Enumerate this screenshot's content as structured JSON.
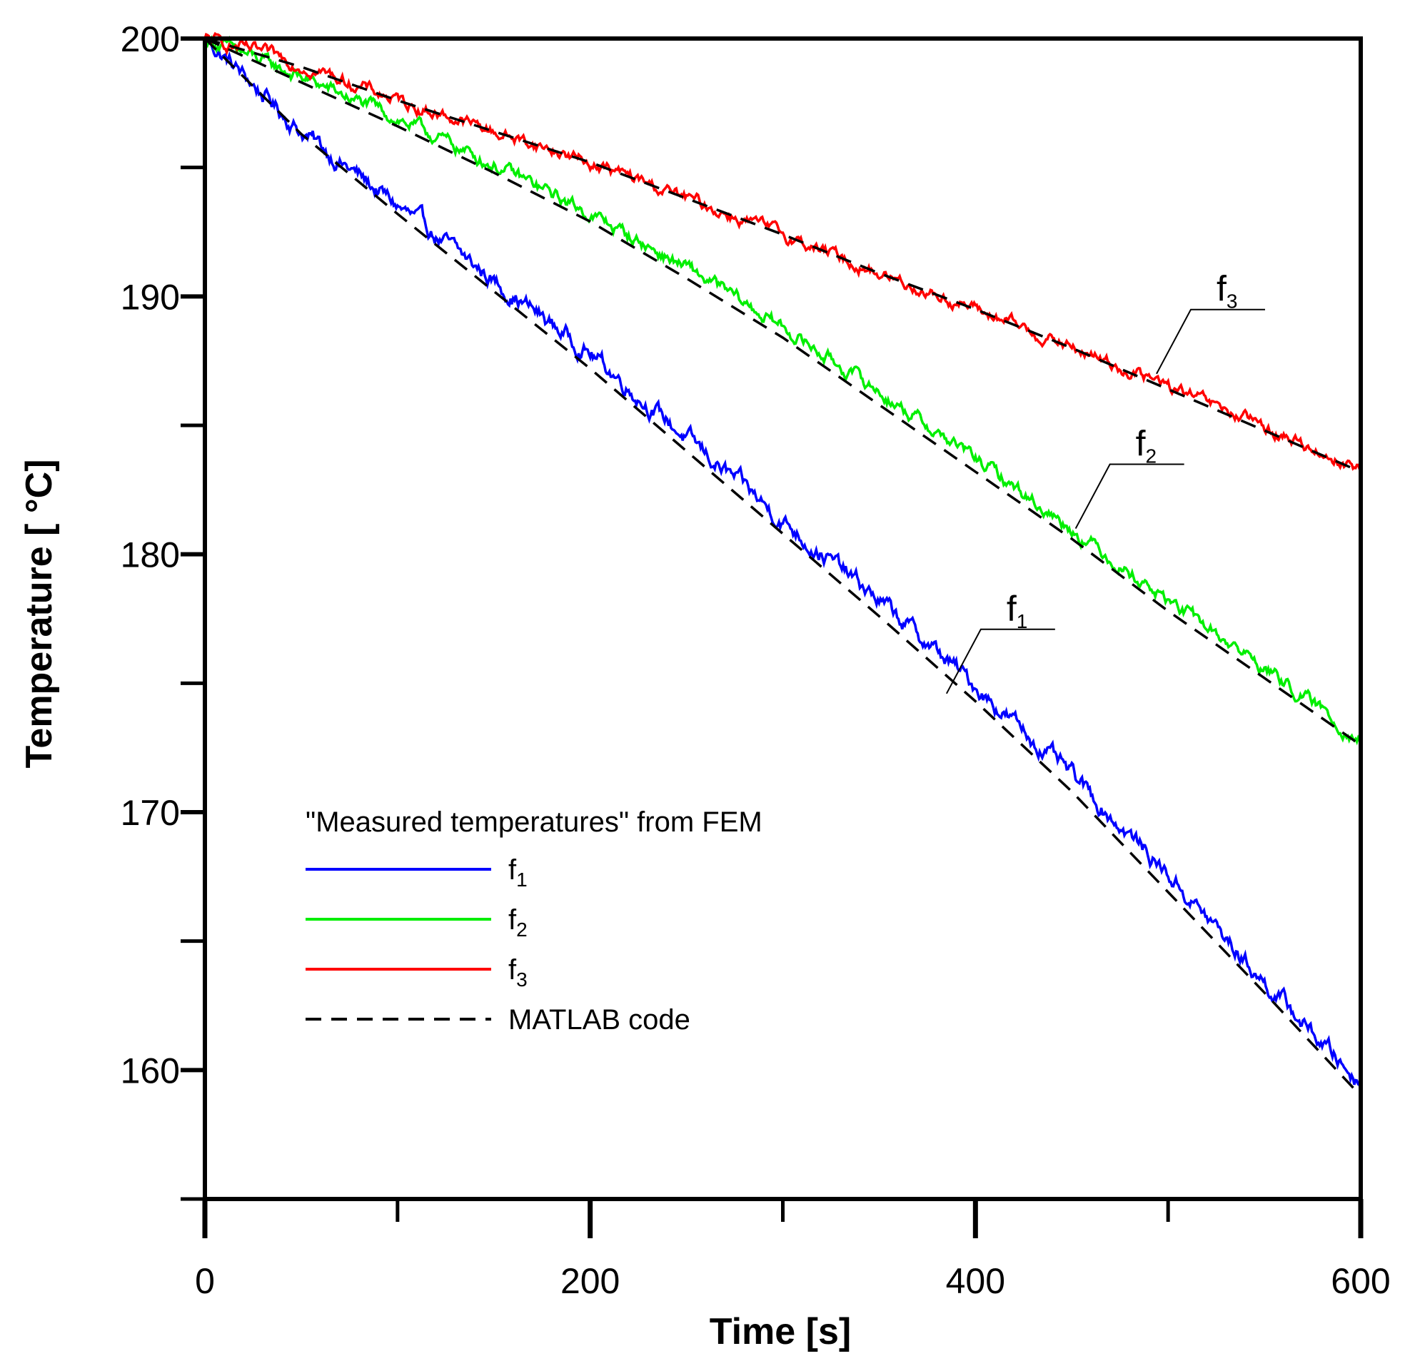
{
  "chart_data": {
    "type": "line",
    "title": "",
    "xlabel": "Time  [s]",
    "ylabel": "Temperature  [ °C]",
    "xlim": [
      0,
      600
    ],
    "ylim": [
      155,
      200
    ],
    "x_ticks": [
      0,
      200,
      400,
      600
    ],
    "x_minor_ticks": [
      100,
      300,
      500
    ],
    "y_ticks": [
      160,
      170,
      180,
      190,
      200
    ],
    "y_minor_ticks": [
      155,
      165,
      175,
      185,
      195
    ],
    "grid": false,
    "legend": {
      "title": "\"Measured temperatures\" from  FEM",
      "placement": "bottom-left",
      "entries": [
        {
          "name": "f",
          "sub": "1",
          "color": "#0000ff",
          "style": "solid"
        },
        {
          "name": "f",
          "sub": "2",
          "color": "#00ee00",
          "style": "solid"
        },
        {
          "name": "f",
          "sub": "3",
          "color": "#ff0000",
          "style": "solid"
        },
        {
          "name": "MATLAB code",
          "sub": "",
          "color": "#000000",
          "style": "dashed"
        }
      ]
    },
    "series": [
      {
        "name": "f1 measured",
        "color": "#0000ff",
        "style": "solid",
        "x": [
          0,
          50,
          100,
          150,
          200,
          250,
          300,
          350,
          400,
          450,
          500,
          550,
          600
        ],
        "y": [
          200.0,
          196.4,
          193.5,
          190.6,
          187.8,
          184.5,
          181.3,
          178.2,
          174.9,
          171.4,
          167.6,
          163.4,
          159.5
        ],
        "noise": 0.28
      },
      {
        "name": "f2 measured",
        "color": "#00ee00",
        "style": "solid",
        "x": [
          0,
          50,
          100,
          150,
          200,
          250,
          300,
          350,
          400,
          450,
          500,
          550,
          600
        ],
        "y": [
          200.0,
          198.5,
          196.9,
          195.1,
          193.2,
          191.1,
          188.8,
          186.3,
          183.7,
          181.0,
          178.2,
          175.6,
          172.8
        ],
        "noise": 0.22
      },
      {
        "name": "f3 measured",
        "color": "#ff0000",
        "style": "solid",
        "x": [
          0,
          50,
          100,
          150,
          200,
          250,
          300,
          350,
          400,
          450,
          500,
          550,
          600
        ],
        "y": [
          200.0,
          199.0,
          197.6,
          196.4,
          195.2,
          193.8,
          192.4,
          190.9,
          189.5,
          188.0,
          186.5,
          184.9,
          183.3
        ],
        "noise": 0.2
      },
      {
        "name": "f1 MATLAB code",
        "color": "#000000",
        "style": "dashed",
        "x": [
          0,
          50,
          100,
          150,
          200,
          250,
          300,
          350,
          400,
          450,
          500,
          550,
          600
        ],
        "y": [
          200.0,
          196.3,
          193.2,
          190.2,
          187.2,
          184.0,
          180.8,
          177.6,
          174.3,
          170.8,
          166.9,
          163.0,
          159.0
        ]
      },
      {
        "name": "f2 MATLAB code",
        "color": "#000000",
        "style": "dashed",
        "x": [
          0,
          50,
          100,
          150,
          200,
          250,
          300,
          350,
          400,
          450,
          500,
          550,
          600
        ],
        "y": [
          200.0,
          198.3,
          196.6,
          194.8,
          192.9,
          190.7,
          188.4,
          185.8,
          183.2,
          180.6,
          177.8,
          175.2,
          172.6
        ]
      },
      {
        "name": "f3 MATLAB code",
        "color": "#000000",
        "style": "dashed",
        "x": [
          0,
          50,
          100,
          150,
          200,
          250,
          300,
          350,
          400,
          450,
          500,
          550,
          600
        ],
        "y": [
          200.0,
          198.9,
          197.6,
          196.4,
          195.2,
          193.8,
          192.4,
          190.9,
          189.5,
          188.0,
          186.4,
          184.8,
          183.2
        ]
      }
    ],
    "annotations": [
      {
        "label": "f",
        "sub": "1",
        "at": [
          385,
          174.6
        ]
      },
      {
        "label": "f",
        "sub": "2",
        "at": [
          452,
          181.0
        ]
      },
      {
        "label": "f",
        "sub": "3",
        "at": [
          494,
          187.0
        ]
      }
    ]
  }
}
